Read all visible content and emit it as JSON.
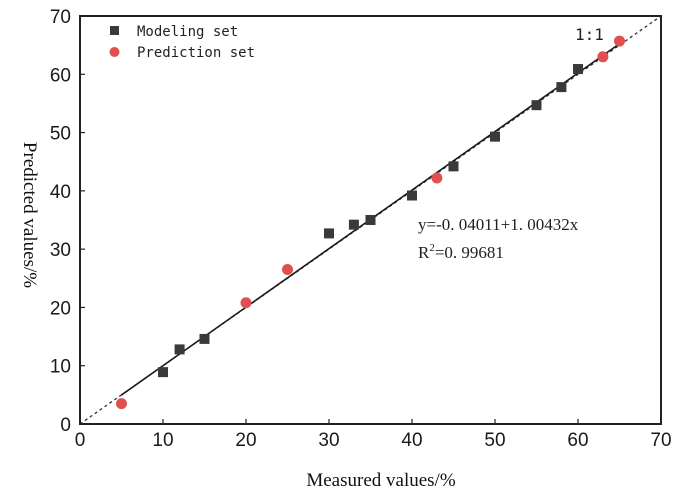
{
  "chart_data": {
    "type": "scatter",
    "xlabel": "Measured values/%",
    "ylabel": "Predicted values/%",
    "xlim": [
      0,
      70
    ],
    "ylim": [
      0,
      70
    ],
    "xticks": [
      "0",
      "10",
      "20",
      "30",
      "40",
      "50",
      "60",
      "70"
    ],
    "yticks": [
      "0",
      "10",
      "20",
      "30",
      "40",
      "50",
      "60",
      "70"
    ],
    "grid": false,
    "legend_position": "top-left",
    "series": [
      {
        "name": "Modeling set",
        "marker": "square",
        "color": "#3a3a3a",
        "points": [
          [
            10,
            8.9
          ],
          [
            12,
            12.8
          ],
          [
            15,
            14.6
          ],
          [
            30,
            32.7
          ],
          [
            33,
            34.2
          ],
          [
            35,
            35.0
          ],
          [
            40,
            39.2
          ],
          [
            45,
            44.2
          ],
          [
            50,
            49.3
          ],
          [
            55,
            54.7
          ],
          [
            58,
            57.8
          ],
          [
            60,
            60.9
          ]
        ]
      },
      {
        "name": "Prediction set",
        "marker": "circle",
        "color": "#e05050",
        "points": [
          [
            5,
            3.5
          ],
          [
            20,
            20.8
          ],
          [
            25,
            26.5
          ],
          [
            43,
            42.2
          ],
          [
            63,
            63.0
          ],
          [
            65,
            65.7
          ]
        ]
      }
    ],
    "fit_line": {
      "intercept": -0.04011,
      "slope": 1.00432,
      "x_range": [
        5,
        65
      ],
      "color": "#1a1a1a"
    },
    "reference_line": {
      "label": "1:1",
      "style": "dashed",
      "color": "#333333"
    },
    "annotation": {
      "equation": "y=-0. 04011+1. 00432x",
      "r2_prefix": "R",
      "r2_sup": "2",
      "r2_value": "=0. 99681"
    }
  }
}
